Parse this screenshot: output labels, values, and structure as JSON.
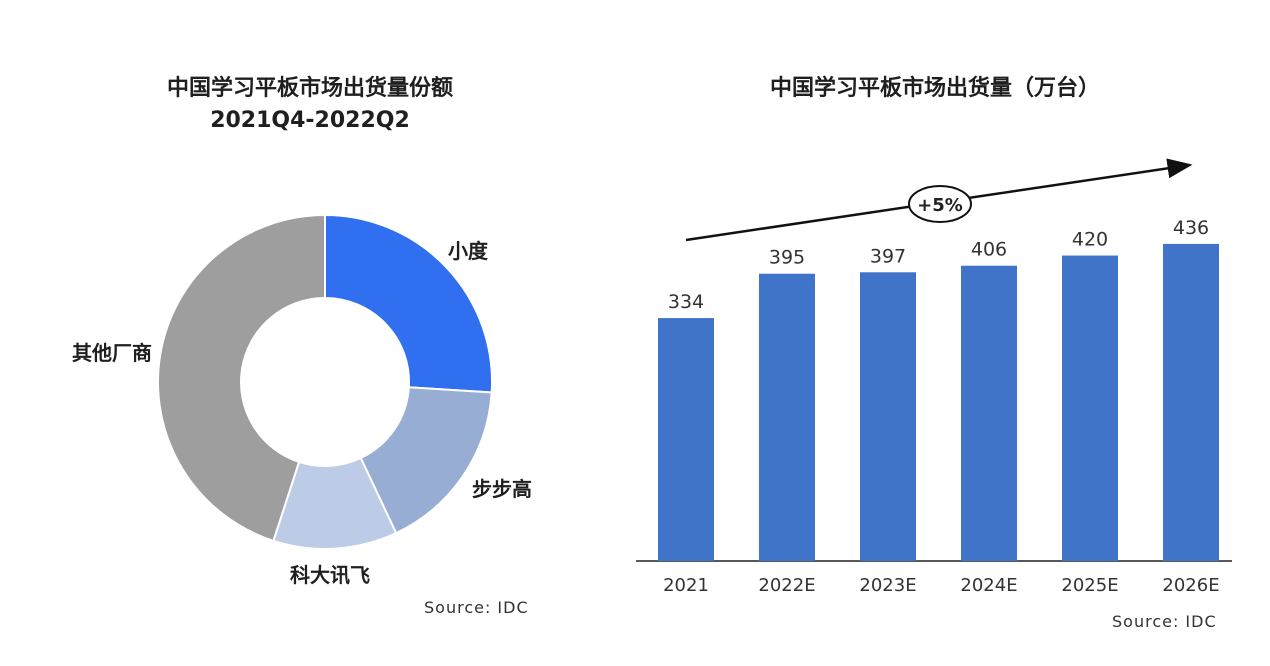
{
  "chart_data": [
    {
      "type": "pie",
      "title": "中国学习平板市场出货量份额",
      "subtitle": "2021Q4-2022Q2",
      "style": "donut",
      "categories": [
        "小度",
        "步步高",
        "科大讯飞",
        "其他厂商"
      ],
      "values": [
        26,
        17,
        12,
        45
      ],
      "colors": [
        "#2f6ff0",
        "#97add4",
        "#bccbe6",
        "#9e9e9e"
      ],
      "source": "Source:  IDC"
    },
    {
      "type": "bar",
      "title": "中国学习平板市场出货量（万台）",
      "categories": [
        "2021",
        "2022E",
        "2023E",
        "2024E",
        "2025E",
        "2026E"
      ],
      "values": [
        334,
        395,
        397,
        406,
        420,
        436
      ],
      "ylim": [
        0,
        440
      ],
      "bar_color": "#3f74c8",
      "annotation": "+5%",
      "source": "Source:  IDC"
    }
  ]
}
